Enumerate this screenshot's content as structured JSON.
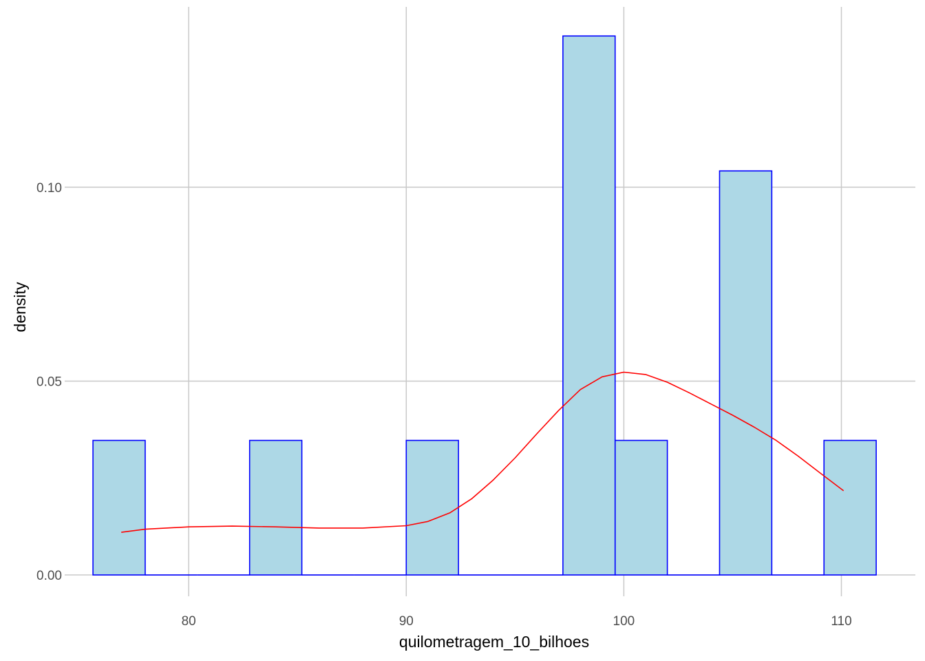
{
  "chart_data": {
    "type": "bar",
    "xlabel": "quilometragem_10_bilhoes",
    "ylabel": "density",
    "xlim": [
      74.3,
      113.4
    ],
    "ylim": [
      -0.0055,
      0.1465
    ],
    "x_ticks": [
      80,
      90,
      100,
      110
    ],
    "x_tick_labels": [
      "80",
      "90",
      "100",
      "110"
    ],
    "y_ticks": [
      0,
      0.05,
      0.1
    ],
    "y_tick_labels": [
      "0.00",
      "0.05",
      "0.10"
    ],
    "grid": true,
    "bin_width": 2.4,
    "bins": [
      {
        "x0": 75.6,
        "x1": 78.0,
        "density": 0.0347
      },
      {
        "x0": 78.0,
        "x1": 80.4,
        "density": 0
      },
      {
        "x0": 80.4,
        "x1": 82.8,
        "density": 0
      },
      {
        "x0": 82.8,
        "x1": 85.2,
        "density": 0.0347
      },
      {
        "x0": 85.2,
        "x1": 87.6,
        "density": 0
      },
      {
        "x0": 87.6,
        "x1": 90.0,
        "density": 0
      },
      {
        "x0": 90.0,
        "x1": 92.4,
        "density": 0.0347
      },
      {
        "x0": 92.4,
        "x1": 94.8,
        "density": 0
      },
      {
        "x0": 94.8,
        "x1": 97.2,
        "density": 0
      },
      {
        "x0": 97.2,
        "x1": 99.6,
        "density": 0.139
      },
      {
        "x0": 99.6,
        "x1": 102.0,
        "density": 0.0347
      },
      {
        "x0": 102.0,
        "x1": 104.4,
        "density": 0
      },
      {
        "x0": 104.4,
        "x1": 106.8,
        "density": 0.1042
      },
      {
        "x0": 106.8,
        "x1": 109.2,
        "density": 0
      },
      {
        "x0": 109.2,
        "x1": 111.6,
        "density": 0.0347
      }
    ],
    "density_curve": {
      "x": [
        76.9,
        78,
        80,
        82,
        84,
        86,
        88,
        90,
        91,
        92,
        93,
        94,
        95,
        96,
        97,
        98,
        99,
        100,
        101,
        102,
        103,
        104,
        105,
        106,
        107,
        108,
        109,
        110.1
      ],
      "y": [
        0.011,
        0.0118,
        0.0124,
        0.0126,
        0.0124,
        0.0121,
        0.0121,
        0.0127,
        0.0138,
        0.016,
        0.0196,
        0.0245,
        0.0302,
        0.0364,
        0.0424,
        0.0478,
        0.0511,
        0.0523,
        0.0517,
        0.0497,
        0.047,
        0.0441,
        0.0412,
        0.0381,
        0.0347,
        0.0307,
        0.0264,
        0.0217
      ]
    },
    "colors": {
      "bar_fill": "#add8e6",
      "bar_outline": "#0000ff",
      "density_line": "#ff0000",
      "grid": "#c8c8c8"
    }
  }
}
